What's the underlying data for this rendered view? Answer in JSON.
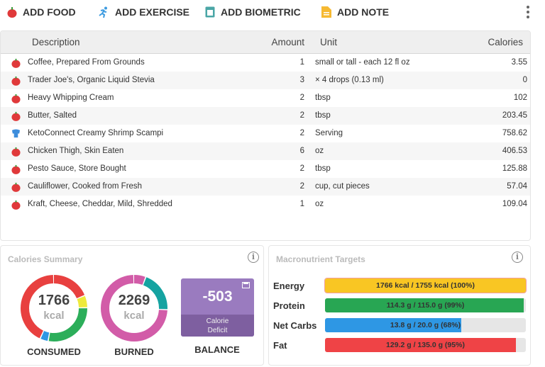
{
  "toolbar": {
    "add_food": "ADD FOOD",
    "add_exercise": "ADD EXERCISE",
    "add_biometric": "ADD BIOMETRIC",
    "add_note": "ADD NOTE"
  },
  "table": {
    "headers": {
      "description": "Description",
      "amount": "Amount",
      "unit": "Unit",
      "calories": "Calories"
    },
    "rows": [
      {
        "icon": "apple-icon",
        "description": "Coffee, Prepared From Grounds",
        "amount": "1",
        "unit": "small or tall - each 12 fl oz",
        "calories": "3.55"
      },
      {
        "icon": "apple-icon",
        "description": "Trader Joe's, Organic Liquid Stevia",
        "amount": "3",
        "unit": "× 4 drops (0.13 ml)",
        "calories": "0"
      },
      {
        "icon": "apple-icon",
        "description": "Heavy Whipping Cream",
        "amount": "2",
        "unit": "tbsp",
        "calories": "102"
      },
      {
        "icon": "apple-icon",
        "description": "Butter, Salted",
        "amount": "2",
        "unit": "tbsp",
        "calories": "203.45"
      },
      {
        "icon": "chef-hat-icon",
        "description": "KetoConnect Creamy Shrimp Scampi",
        "amount": "2",
        "unit": "Serving",
        "calories": "758.62"
      },
      {
        "icon": "apple-icon",
        "description": "Chicken Thigh, Skin Eaten",
        "amount": "6",
        "unit": "oz",
        "calories": "406.53"
      },
      {
        "icon": "apple-icon",
        "description": "Pesto Sauce, Store Bought",
        "amount": "2",
        "unit": "tbsp",
        "calories": "125.88"
      },
      {
        "icon": "apple-icon",
        "description": "Cauliflower, Cooked from Fresh",
        "amount": "2",
        "unit": "cup, cut pieces",
        "calories": "57.04"
      },
      {
        "icon": "apple-icon",
        "description": "Kraft, Cheese, Cheddar, Mild, Shredded",
        "amount": "1",
        "unit": "oz",
        "calories": "109.04"
      }
    ]
  },
  "summary": {
    "title": "Calories Summary",
    "consumed": {
      "value": "1766",
      "unit": "kcal",
      "label": "CONSUMED",
      "segments": [
        {
          "color": "#e8403f",
          "fraction": 0.19
        },
        {
          "color": "#eeea3c",
          "fraction": 0.06
        },
        {
          "color": "#2cae5a",
          "fraction": 0.28
        },
        {
          "color": "#2e97e4",
          "fraction": 0.04
        },
        {
          "color": "#e8403f",
          "fraction": 0.43
        }
      ]
    },
    "burned": {
      "value": "2269",
      "unit": "kcal",
      "label": "BURNED",
      "segments": [
        {
          "color": "#d25ca8",
          "fraction": 0.06
        },
        {
          "color": "#15a3a1",
          "fraction": 0.2
        },
        {
          "color": "#d25ca8",
          "fraction": 0.74
        }
      ]
    },
    "balance": {
      "value": "-503",
      "sub": "Calorie Deficit",
      "label": "BALANCE",
      "color": "#9a7bbf"
    }
  },
  "macros": {
    "title": "Macronutrient Targets",
    "items": [
      {
        "label": "Energy",
        "text": "1766 kcal / 1755 kcal (100%)",
        "percent": 100,
        "color": "#f9c623"
      },
      {
        "label": "Protein",
        "text": "114.3 g / 115.0 g (99%)",
        "percent": 99,
        "color": "#28a653"
      },
      {
        "label": "Net Carbs",
        "text": "13.8 g / 20.0 g (68%)",
        "percent": 68,
        "color": "#2e97e4"
      },
      {
        "label": "Fat",
        "text": "129.2 g / 135.0 g (95%)",
        "percent": 95,
        "color": "#ef4346"
      }
    ]
  }
}
